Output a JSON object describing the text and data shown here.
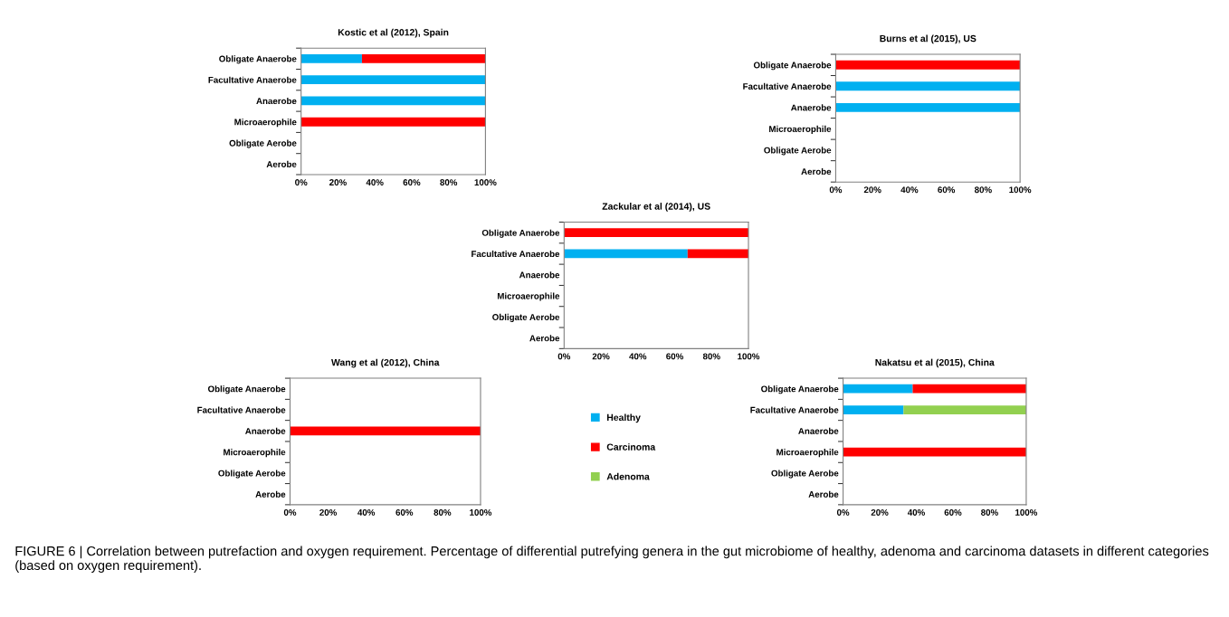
{
  "chart_data": [
    {
      "type": "bar",
      "orientation": "horizontal",
      "stacked": true,
      "title": "Kostic et al (2012), Spain",
      "categories": [
        "Obligate Anaerobe",
        "Facultative Anaerobe",
        "Anaerobe",
        "Microaerophile",
        "Obligate Aerobe",
        "Aerobe"
      ],
      "xlim": [
        0,
        100
      ],
      "xticks": [
        {
          "value": 0,
          "label": "0%"
        },
        {
          "value": 20,
          "label": "20%"
        },
        {
          "value": 40,
          "label": "40%"
        },
        {
          "value": 60,
          "label": "60%"
        },
        {
          "value": 80,
          "label": "80%"
        },
        {
          "value": 100,
          "label": "100%"
        }
      ],
      "grid": false,
      "series": [
        {
          "color": "#00b0f0",
          "values": [
            33,
            100,
            100,
            null,
            null,
            null
          ]
        },
        {
          "color": "#ff0000",
          "values": [
            67,
            null,
            null,
            100,
            null,
            null
          ]
        }
      ]
    },
    {
      "type": "bar",
      "orientation": "horizontal",
      "stacked": true,
      "title": "Burns et al (2015), US",
      "categories": [
        "Obligate Anaerobe",
        "Facultative Anaerobe",
        "Anaerobe",
        "Microaerophile",
        "Obligate Aerobe",
        "Aerobe"
      ],
      "xlim": [
        0,
        100
      ],
      "xticks": [
        {
          "value": 0,
          "label": "0%"
        },
        {
          "value": 20,
          "label": "20%"
        },
        {
          "value": 40,
          "label": "40%"
        },
        {
          "value": 60,
          "label": "60%"
        },
        {
          "value": 80,
          "label": "80%"
        },
        {
          "value": 100,
          "label": "100%"
        }
      ],
      "grid": false,
      "series": [
        {
          "color": "#00b0f0",
          "values": [
            null,
            100,
            100,
            null,
            null,
            null
          ]
        },
        {
          "color": "#ff0000",
          "values": [
            100,
            null,
            null,
            null,
            null,
            null
          ]
        }
      ]
    },
    {
      "type": "bar",
      "orientation": "horizontal",
      "stacked": true,
      "title": "Zackular et al (2014), US",
      "categories": [
        "Obligate Anaerobe",
        "Facultative Anaerobe",
        "Anaerobe",
        "Microaerophile",
        "Obligate Aerobe",
        "Aerobe"
      ],
      "xlim": [
        0,
        100
      ],
      "xticks": [
        {
          "value": 0,
          "label": "0%"
        },
        {
          "value": 20,
          "label": "20%"
        },
        {
          "value": 40,
          "label": "40%"
        },
        {
          "value": 60,
          "label": "60%"
        },
        {
          "value": 80,
          "label": "80%"
        },
        {
          "value": 100,
          "label": "100%"
        }
      ],
      "grid": false,
      "series": [
        {
          "color": "#00b0f0",
          "values": [
            null,
            67,
            null,
            null,
            null,
            null
          ]
        },
        {
          "color": "#ff0000",
          "values": [
            100,
            33,
            null,
            null,
            null,
            null
          ]
        }
      ]
    },
    {
      "type": "bar",
      "orientation": "horizontal",
      "stacked": true,
      "title": "Wang et al (2012), China",
      "categories": [
        "Obligate Anaerobe",
        "Facultative Anaerobe",
        "Anaerobe",
        "Microaerophile",
        "Obligate Aerobe",
        "Aerobe"
      ],
      "xlim": [
        0,
        100
      ],
      "xticks": [
        {
          "value": 0,
          "label": "0%"
        },
        {
          "value": 20,
          "label": "20%"
        },
        {
          "value": 40,
          "label": "40%"
        },
        {
          "value": 60,
          "label": "60%"
        },
        {
          "value": 80,
          "label": "80%"
        },
        {
          "value": 100,
          "label": "100%"
        }
      ],
      "grid": false,
      "series": [
        {
          "color": "#ff0000",
          "values": [
            null,
            null,
            100,
            null,
            null,
            null
          ]
        }
      ]
    },
    {
      "type": "bar",
      "orientation": "horizontal",
      "stacked": true,
      "title": "Nakatsu et al (2015), China",
      "categories": [
        "Obligate Anaerobe",
        "Facultative Anaerobe",
        "Anaerobe",
        "Microaerophile",
        "Obligate Aerobe",
        "Aerobe"
      ],
      "xlim": [
        0,
        100
      ],
      "xticks": [
        {
          "value": 0,
          "label": "0%"
        },
        {
          "value": 20,
          "label": "20%"
        },
        {
          "value": 40,
          "label": "40%"
        },
        {
          "value": 60,
          "label": "60%"
        },
        {
          "value": 80,
          "label": "80%"
        },
        {
          "value": 100,
          "label": "100%"
        }
      ],
      "grid": false,
      "legend": "left",
      "series": [
        {
          "name": "Healthy",
          "color": "#00b0f0",
          "values": [
            38,
            33,
            null,
            null,
            null,
            null
          ]
        },
        {
          "name": "Carcinoma",
          "color": "#ff0000",
          "values": [
            62,
            null,
            null,
            100,
            null,
            null
          ]
        },
        {
          "name": "Adenoma",
          "color": "#92d050",
          "values": [
            null,
            67,
            null,
            null,
            null,
            null
          ]
        }
      ],
      "annotations": [
        "FIGURE 6 | Correlation between putrefaction and oxygen requirement. Percentage of differential putrefying genera in the gut microbiome of healthy, adenoma and carcinoma datasets in different categories (based on oxygen requirement)."
      ]
    }
  ]
}
